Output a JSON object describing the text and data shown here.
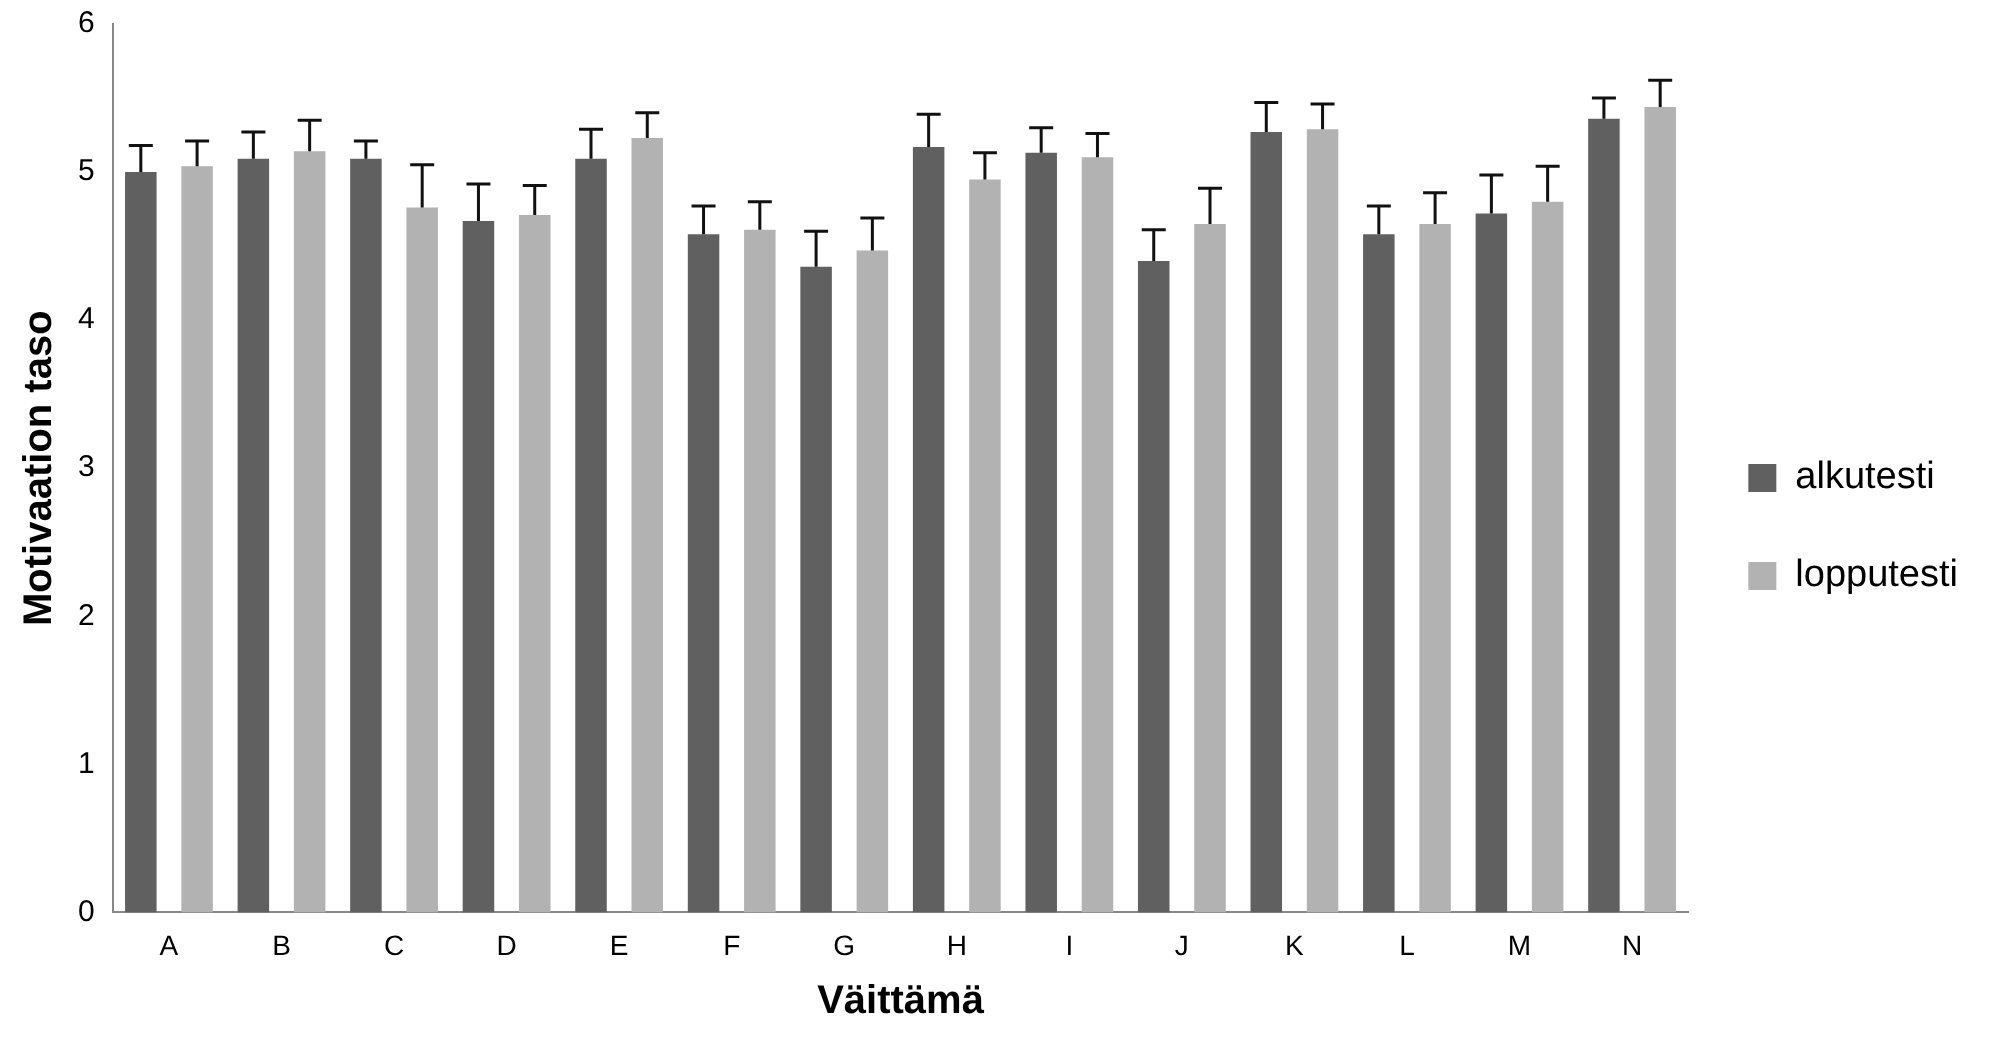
{
  "chart_data": {
    "type": "bar",
    "xlabel": "Väittämä",
    "ylabel": "Motivaation taso",
    "categories": [
      "A",
      "B",
      "C",
      "D",
      "E",
      "F",
      "G",
      "H",
      "I",
      "J",
      "K",
      "L",
      "M",
      "N"
    ],
    "series": [
      {
        "name": "alkutesti",
        "color": "#606060",
        "values": [
          5.0,
          5.09,
          5.09,
          4.67,
          5.09,
          4.58,
          4.36,
          5.17,
          5.13,
          4.4,
          5.27,
          4.58,
          4.72,
          5.36
        ],
        "errors": [
          [
            5.0,
            5.18
          ],
          [
            5.09,
            5.27
          ],
          [
            5.09,
            5.21
          ],
          [
            4.67,
            4.92
          ],
          [
            5.09,
            5.29
          ],
          [
            4.58,
            4.77
          ],
          [
            4.36,
            4.6
          ],
          [
            5.17,
            5.39
          ],
          [
            5.13,
            5.3
          ],
          [
            4.4,
            4.61
          ],
          [
            5.27,
            5.47
          ],
          [
            4.58,
            4.77
          ],
          [
            4.72,
            4.98
          ],
          [
            5.36,
            5.5
          ]
        ]
      },
      {
        "name": "lopputesti",
        "color": "#b2b2b2",
        "values": [
          5.04,
          5.14,
          4.76,
          4.71,
          5.23,
          4.61,
          4.47,
          4.95,
          5.1,
          4.65,
          5.29,
          4.65,
          4.8,
          5.44
        ],
        "errors": [
          [
            5.04,
            5.21
          ],
          [
            5.14,
            5.35
          ],
          [
            4.76,
            5.05
          ],
          [
            4.71,
            4.91
          ],
          [
            5.23,
            5.4
          ],
          [
            4.61,
            4.8
          ],
          [
            4.47,
            4.69
          ],
          [
            4.95,
            5.13
          ],
          [
            5.1,
            5.26
          ],
          [
            4.65,
            4.89
          ],
          [
            5.29,
            5.46
          ],
          [
            4.65,
            4.86
          ],
          [
            4.8,
            5.04
          ],
          [
            5.44,
            5.62
          ]
        ]
      }
    ],
    "ylim": [
      0,
      6
    ],
    "yticks": [
      0,
      1,
      2,
      3,
      4,
      5,
      6
    ],
    "grid": false,
    "legend": "right"
  }
}
